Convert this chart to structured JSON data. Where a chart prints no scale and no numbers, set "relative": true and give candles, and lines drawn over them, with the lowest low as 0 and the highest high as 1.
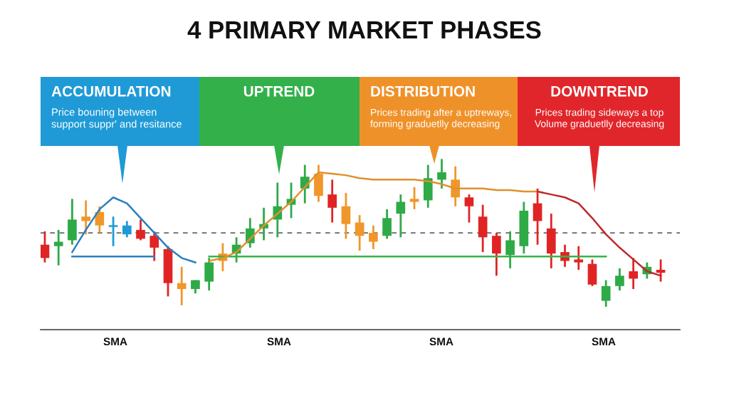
{
  "chart_data": {
    "type": "candlestick",
    "title": "4 PRIMARY MARKET PHASES",
    "relative": true,
    "categories": [
      null,
      null,
      null,
      null,
      null,
      null,
      null,
      null,
      null,
      null,
      null,
      null,
      null,
      null,
      null,
      null,
      null,
      null,
      null,
      null,
      null,
      null,
      null,
      null,
      null,
      null,
      null,
      null,
      null,
      null,
      null,
      null,
      null,
      null,
      null,
      null,
      null,
      null,
      null,
      null,
      null,
      null,
      null,
      null,
      null,
      null
    ],
    "ohlc": [
      [
        0.42,
        0.51,
        0.3,
        0.33
      ],
      [
        0.41,
        0.52,
        0.28,
        0.44
      ],
      [
        0.45,
        0.73,
        0.42,
        0.59
      ],
      [
        0.61,
        0.72,
        0.49,
        0.58
      ],
      [
        0.64,
        0.68,
        0.5,
        0.55
      ],
      [
        0.55,
        0.61,
        0.41,
        0.54
      ],
      [
        0.55,
        0.58,
        0.47,
        0.49
      ],
      [
        0.52,
        0.59,
        0.45,
        0.46
      ],
      [
        0.48,
        0.51,
        0.31,
        0.4
      ],
      [
        0.39,
        0.41,
        0.07,
        0.16
      ],
      [
        0.16,
        0.27,
        0.01,
        0.12
      ],
      [
        0.12,
        0.18,
        0.09,
        0.18
      ],
      [
        0.17,
        0.33,
        0.11,
        0.3
      ],
      [
        0.31,
        0.43,
        0.24,
        0.36
      ],
      [
        0.36,
        0.47,
        0.3,
        0.42
      ],
      [
        0.43,
        0.6,
        0.4,
        0.53
      ],
      [
        0.53,
        0.67,
        0.45,
        0.56
      ],
      [
        0.59,
        0.84,
        0.47,
        0.68
      ],
      [
        0.69,
        0.84,
        0.6,
        0.73
      ],
      [
        0.8,
        0.96,
        0.7,
        0.88
      ],
      [
        0.9,
        0.96,
        0.71,
        0.75
      ],
      [
        0.76,
        0.86,
        0.57,
        0.67
      ],
      [
        0.68,
        0.77,
        0.46,
        0.56
      ],
      [
        0.57,
        0.62,
        0.38,
        0.48
      ],
      [
        0.5,
        0.55,
        0.39,
        0.44
      ],
      [
        0.48,
        0.66,
        0.46,
        0.6
      ],
      [
        0.63,
        0.76,
        0.47,
        0.71
      ],
      [
        0.71,
        0.81,
        0.66,
        0.73
      ],
      [
        0.72,
        0.96,
        0.67,
        0.87
      ],
      [
        0.86,
        1.0,
        0.8,
        0.91
      ],
      [
        0.86,
        0.95,
        0.68,
        0.74
      ],
      [
        0.74,
        0.76,
        0.57,
        0.68
      ],
      [
        0.61,
        0.69,
        0.37,
        0.47
      ],
      [
        0.48,
        0.5,
        0.21,
        0.36
      ],
      [
        0.35,
        0.51,
        0.26,
        0.45
      ],
      [
        0.41,
        0.71,
        0.36,
        0.65
      ],
      [
        0.7,
        0.8,
        0.42,
        0.58
      ],
      [
        0.53,
        0.63,
        0.26,
        0.36
      ],
      [
        0.37,
        0.42,
        0.27,
        0.31
      ],
      [
        0.32,
        0.41,
        0.25,
        0.3
      ],
      [
        0.29,
        0.32,
        0.14,
        0.15
      ],
      [
        0.04,
        0.18,
        0.0,
        0.14
      ],
      [
        0.14,
        0.26,
        0.11,
        0.21
      ],
      [
        0.24,
        0.33,
        0.12,
        0.19
      ],
      [
        0.22,
        0.3,
        0.19,
        0.27
      ],
      [
        0.25,
        0.32,
        0.17,
        0.23
      ]
    ],
    "colors": [
      "#e02424",
      "#2eaa47",
      "#2eaa47",
      "#f0962a",
      "#f0962a",
      "#1f9ad6",
      "#1f9ad6",
      "#e02424",
      "#e02424",
      "#e02424",
      "#f0962a",
      "#2eaa47",
      "#2eaa47",
      "#f0962a",
      "#2eaa47",
      "#2eaa47",
      "#2eaa47",
      "#2eaa47",
      "#2eaa47",
      "#2eaa47",
      "#f0962a",
      "#e02424",
      "#f0962a",
      "#f0962a",
      "#f0962a",
      "#2eaa47",
      "#2eaa47",
      "#f0962a",
      "#2eaa47",
      "#2eaa47",
      "#f0962a",
      "#e02424",
      "#e02424",
      "#e02424",
      "#2eaa47",
      "#2eaa47",
      "#e02424",
      "#e02424",
      "#e02424",
      "#e02424",
      "#e02424",
      "#2eaa47",
      "#2eaa47",
      "#e02424",
      "#2eaa47",
      "#e02424"
    ],
    "series": [
      {
        "type": "line",
        "color": "#2b7fbf",
        "values": [
          null,
          null,
          0.34,
          0.34,
          0.34,
          0.34,
          0.34,
          0.34,
          0.34,
          null,
          null,
          null,
          null,
          null,
          null,
          null,
          null,
          null,
          null,
          null,
          null,
          null,
          null,
          null,
          null,
          null,
          null,
          null,
          null,
          null,
          null,
          null,
          null,
          null,
          null,
          null,
          null,
          null,
          null,
          null,
          null,
          null,
          null,
          null,
          null,
          null
        ]
      },
      {
        "type": "line",
        "color": "#2b7fbf",
        "values": [
          null,
          null,
          0.37,
          0.52,
          0.66,
          0.74,
          0.7,
          0.6,
          0.5,
          0.4,
          0.33,
          0.3,
          null,
          null,
          null,
          null,
          null,
          null,
          null,
          null,
          null,
          null,
          null,
          null,
          null,
          null,
          null,
          null,
          null,
          null,
          null,
          null,
          null,
          null,
          null,
          null,
          null,
          null,
          null,
          null,
          null,
          null,
          null,
          null,
          null,
          null
        ]
      },
      {
        "type": "line",
        "color": "#38b24a",
        "values": [
          null,
          null,
          null,
          null,
          null,
          null,
          null,
          null,
          null,
          null,
          null,
          null,
          0.34,
          0.34,
          0.34,
          0.34,
          0.34,
          0.34,
          0.34,
          0.34,
          0.34,
          0.34,
          0.34,
          0.34,
          0.34,
          0.34,
          0.34,
          0.34,
          0.34,
          0.34,
          0.34,
          0.34,
          0.34,
          0.34,
          0.34,
          0.34,
          0.34,
          0.34,
          0.34,
          0.34,
          0.34,
          0.34,
          null,
          null,
          null,
          null
        ]
      },
      {
        "type": "line",
        "color": "#e0902a",
        "values": [
          null,
          null,
          null,
          null,
          null,
          null,
          null,
          null,
          null,
          null,
          null,
          null,
          0.31,
          0.33,
          0.37,
          0.46,
          0.55,
          0.63,
          0.71,
          0.81,
          0.91,
          0.9,
          0.89,
          0.87,
          0.86,
          0.86,
          0.86,
          0.86,
          0.85,
          0.83,
          0.8,
          0.8,
          0.8,
          0.79,
          0.79,
          0.78,
          0.78,
          null,
          null,
          null,
          null,
          null,
          null,
          null,
          null,
          null
        ]
      },
      {
        "type": "line",
        "color": "#c0282a",
        "values": [
          null,
          null,
          null,
          null,
          null,
          null,
          null,
          null,
          null,
          null,
          null,
          null,
          null,
          null,
          null,
          null,
          null,
          null,
          null,
          null,
          null,
          null,
          null,
          null,
          null,
          null,
          null,
          null,
          null,
          null,
          null,
          null,
          null,
          null,
          null,
          null,
          0.78,
          0.76,
          0.74,
          0.7,
          0.6,
          0.49,
          0.4,
          0.32,
          0.24,
          0.21
        ]
      }
    ],
    "ref_lines": [
      {
        "axis": "y",
        "value": 0.5,
        "color": "#666666",
        "line_style": "dashed"
      }
    ],
    "annotations": [
      "ACCUMULATION",
      "Price bouning between\nsupport suppr' and resitance",
      "UPTREND",
      "DISTRIBUTION",
      "Prices trading after a uptreways,\nforming graduetlly decreasing",
      "DOWNTREND",
      "Prices trading sideways a top\nVolume graduetlly decreasing",
      "SMA",
      "SMA",
      "SMA",
      "SMA"
    ]
  }
}
